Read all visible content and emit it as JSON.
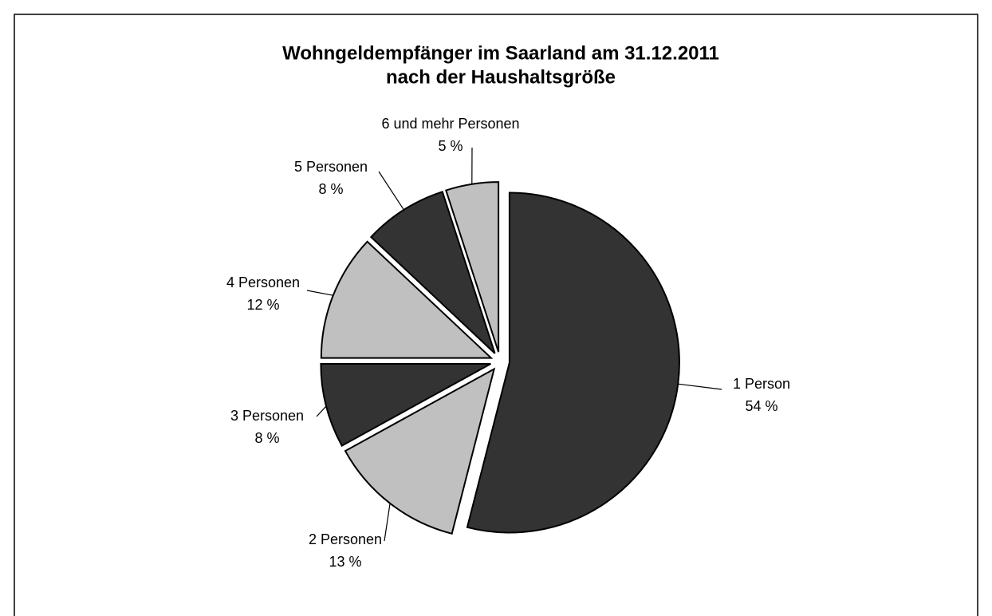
{
  "chart_data": {
    "type": "pie",
    "title": [
      "Wohngeldempfänger im Saarland am 31.12.2011",
      "nach der Haushaltsgröße"
    ],
    "categories": [
      "1 Person",
      "2 Personen",
      "3 Personen",
      "4 Personen",
      "5 Personen",
      "6 und mehr Personen"
    ],
    "values": [
      54,
      13,
      8,
      12,
      8,
      5
    ],
    "value_labels": [
      "54 %",
      "13 %",
      "8 %",
      "12 %",
      "8 %",
      "5 %"
    ],
    "colors": [
      "#333333",
      "#c0c0c0",
      "#333333",
      "#c0c0c0",
      "#333333",
      "#c0c0c0"
    ]
  }
}
